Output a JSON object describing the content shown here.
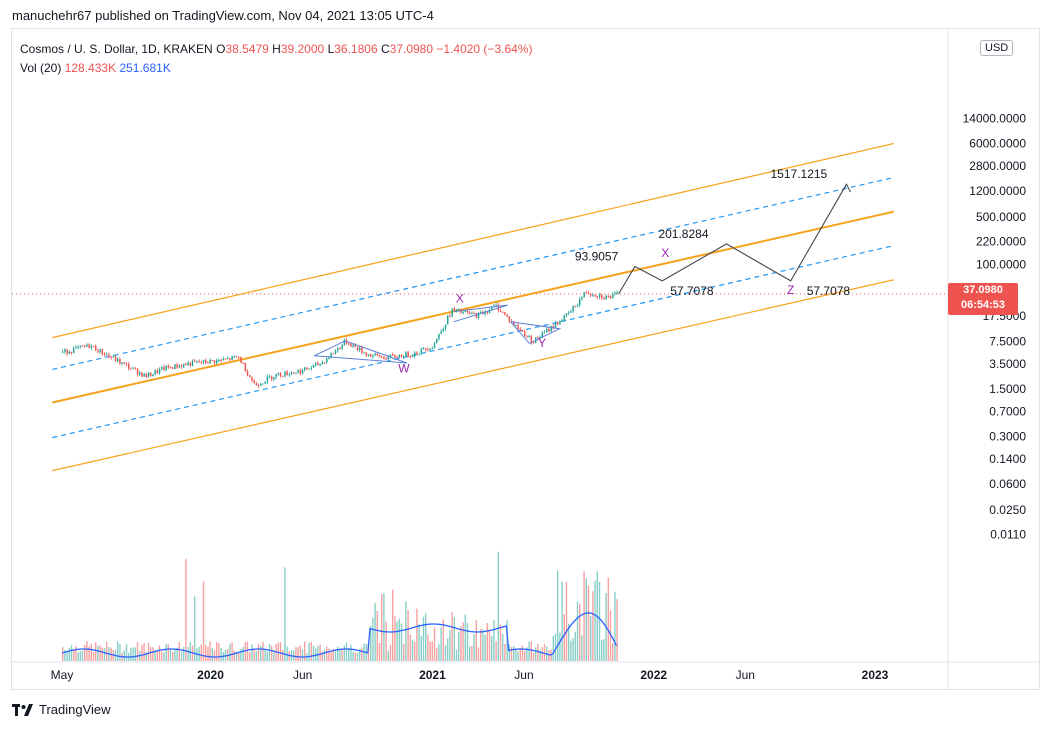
{
  "header": {
    "published": "manuchehr67 published on TradingView.com, Nov 04, 2021 13:05 UTC-4"
  },
  "legend": {
    "symbol": "Cosmos / U. S. Dollar, 1D, KRAKEN",
    "o_label": "O",
    "o_value": "38.5479",
    "h_label": "H",
    "h_value": "39.2000",
    "l_label": "L",
    "l_value": "36.1806",
    "c_label": "C",
    "c_value": "37.0980",
    "change": "−1.4020 (−3.64%)",
    "vol_label": "Vol (20)",
    "vol_value": "128.433K",
    "vol_ma": "251.681K"
  },
  "currency": "USD",
  "price_tag": {
    "price": "37.0980",
    "countdown": "06:54:53"
  },
  "brand": "TradingView",
  "chart_data": {
    "type": "candlestick",
    "title": "Cosmos / U. S. Dollar, 1D, KRAKEN",
    "y_scale": "log",
    "ylim": [
      0.01,
      14000
    ],
    "y_ticks": [
      "14000.0000",
      "6000.0000",
      "2800.0000",
      "1200.0000",
      "500.0000",
      "220.0000",
      "100.0000",
      "17.5000",
      "7.5000",
      "3.5000",
      "1.5000",
      "0.7000",
      "0.3000",
      "0.1400",
      "0.0600",
      "0.0250",
      "0.0110"
    ],
    "x_ticks": [
      "May",
      "2020",
      "Jun",
      "2021",
      "Jun",
      "2022",
      "Jun",
      "2023"
    ],
    "price_path": [
      [
        "2019-05-01",
        5.2
      ],
      [
        "2019-06-15",
        6.5
      ],
      [
        "2019-08-01",
        3.8
      ],
      [
        "2019-09-15",
        2.3
      ],
      [
        "2019-10-15",
        3.0
      ],
      [
        "2019-12-01",
        3.6
      ],
      [
        "2020-01-15",
        3.9
      ],
      [
        "2020-02-15",
        4.4
      ],
      [
        "2020-03-13",
        1.7
      ],
      [
        "2020-04-15",
        2.4
      ],
      [
        "2020-06-01",
        2.8
      ],
      [
        "2020-07-01",
        3.6
      ],
      [
        "2020-08-10",
        7.5
      ],
      [
        "2020-09-15",
        4.8
      ],
      [
        "2020-10-15",
        4.3
      ],
      [
        "2020-12-01",
        5.0
      ],
      [
        "2021-01-01",
        6.5
      ],
      [
        "2021-02-01",
        21.5
      ],
      [
        "2021-03-15",
        18.0
      ],
      [
        "2021-04-15",
        25.0
      ],
      [
        "2021-05-15",
        13.0
      ],
      [
        "2021-06-15",
        7.5
      ],
      [
        "2021-07-15",
        12.0
      ],
      [
        "2021-08-15",
        20.0
      ],
      [
        "2021-09-10",
        40.0
      ],
      [
        "2021-10-15",
        33.0
      ],
      [
        "2021-11-04",
        37.098
      ]
    ],
    "projection": [
      {
        "label": "93.9057",
        "value": 93.9057
      },
      {
        "label": "57.7078",
        "value": 57.7078
      },
      {
        "label": "201.8284",
        "value": 201.8284
      },
      {
        "label": "57.7078",
        "value": 57.7078
      },
      {
        "label": "1517.1215",
        "value": 1517.1215
      }
    ],
    "wave_labels": [
      "W",
      "X",
      "Y",
      "X",
      "Z"
    ],
    "last_price": 37.098,
    "volume_indicator": {
      "name": "Vol (20)",
      "last": "128.433K",
      "ma": "251.681K"
    },
    "colors": {
      "up": "#26a69a",
      "down": "#ef5350",
      "channel": "#f7a21b",
      "midline": "#2196f3",
      "wave": "#9c27b0",
      "vol_ma": "#2962ff"
    }
  }
}
